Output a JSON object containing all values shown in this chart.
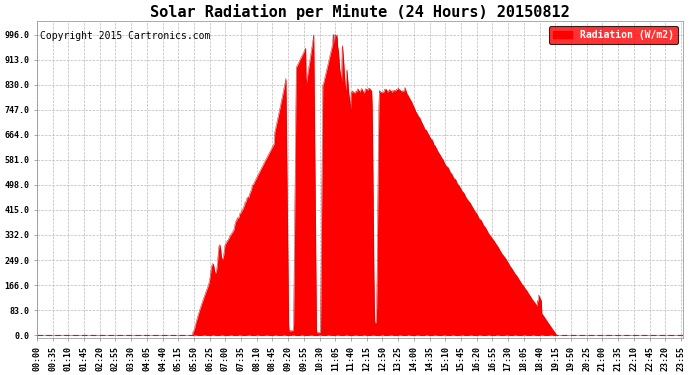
{
  "title": "Solar Radiation per Minute (24 Hours) 20150812",
  "copyright": "Copyright 2015 Cartronics.com",
  "legend_label": "Radiation (W/m2)",
  "y_ticks": [
    0.0,
    83.0,
    166.0,
    249.0,
    332.0,
    415.0,
    498.0,
    581.0,
    664.0,
    747.0,
    830.0,
    913.0,
    996.0
  ],
  "ylim": [
    -10,
    1040
  ],
  "fill_color": "#FF0000",
  "line_color": "#CC0000",
  "background_color": "#FFFFFF",
  "grid_color": "#BBBBBB",
  "legend_bg": "#FF0000",
  "legend_text_color": "#FFFFFF",
  "dashed_line_color": "#FF0000",
  "title_fontsize": 11,
  "copyright_fontsize": 7,
  "tick_label_fontsize": 6,
  "sunrise": 348,
  "sunset": 1158,
  "peak_time": 665,
  "peak_value": 996
}
